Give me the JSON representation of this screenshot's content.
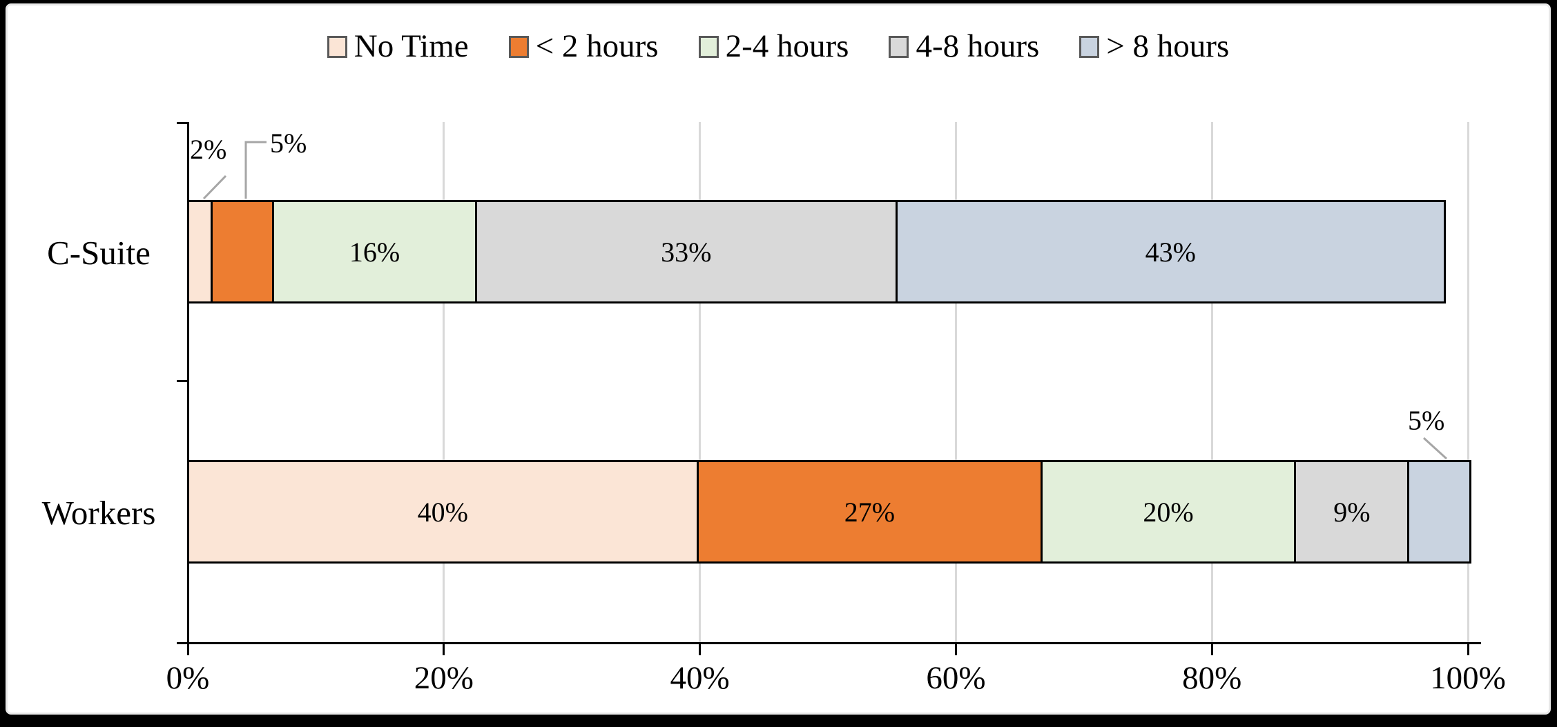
{
  "chart_data": {
    "type": "bar",
    "subtype": "horizontal-stacked",
    "title": "",
    "categories": [
      "C-Suite",
      "Workers"
    ],
    "series": [
      {
        "name": "No Time",
        "color": "#fbe5d6",
        "values": [
          2,
          40
        ]
      },
      {
        "name": "< 2 hours",
        "color": "#ed7d31",
        "values": [
          5,
          27
        ]
      },
      {
        "name": "2-4 hours",
        "color": "#e2efda",
        "values": [
          16,
          20
        ]
      },
      {
        "name": "4-8 hours",
        "color": "#d9d9d9",
        "values": [
          33,
          9
        ]
      },
      {
        "name": "> 8 hours",
        "color": "#c9d3e0",
        "values": [
          43,
          5
        ]
      }
    ],
    "data_labels": {
      "C-Suite": [
        "2%",
        "5%",
        "16%",
        "33%",
        "43%"
      ],
      "Workers": [
        "40%",
        "27%",
        "20%",
        "9%",
        "5%"
      ]
    },
    "external_labels": {
      "C-Suite": [
        true,
        true,
        false,
        false,
        false
      ],
      "Workers": [
        false,
        false,
        false,
        false,
        true
      ]
    },
    "x_ticks": [
      "0%",
      "20%",
      "40%",
      "60%",
      "80%",
      "100%"
    ],
    "xlim": [
      0,
      100
    ],
    "grid": true,
    "legend_position": "top",
    "xlabel": "",
    "ylabel": "",
    "colors": {
      "axis": "#000000",
      "gridline": "#d9d9d9",
      "leader_line": "#a6a6a6",
      "segment_border": "#000000",
      "swatch_border": "#595959",
      "background": "#ffffff",
      "frame_border": "#000000"
    }
  }
}
